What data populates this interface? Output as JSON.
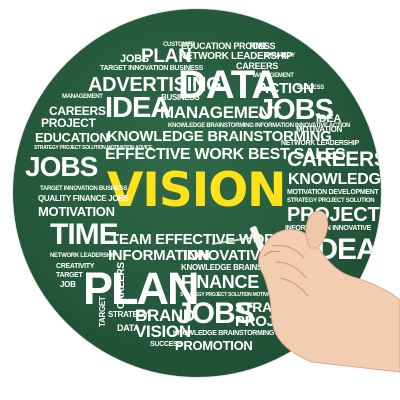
{
  "words": {
    "customer": "CUSTOMER",
    "education_process": "EDUCATION PROCESS",
    "time_top": "TIME",
    "jobs_small": "JOBS",
    "plan_top": "PLAN",
    "network_leadership_top": "NETWORK LEADERSHIP",
    "strategy": "STRATEGY",
    "target_innovation_business": "TARGET INNOVATION BUSINESS",
    "careers_top": "CAREERS",
    "management_tag": "MANAGEMENT",
    "advertising": "ADVERTISING",
    "data": "DATA",
    "action": "ACTION",
    "success_tag": "SUCCESS",
    "management_small": "MANAGEMENT",
    "idea_big": "IDEA",
    "business": "BUSINESS",
    "management_mid": "MANAGEMENT",
    "jobs_big": "JOBS",
    "idea_right": "IDEA",
    "careers_left": "CAREERS",
    "project_left": "PROJECT",
    "knowledge_line": "KNOWLEDGE BRAINSTORMING INFORMATION INNOVATIVE ACTION",
    "motivation_right": "MOTIVATION",
    "education": "EDUCATION",
    "knowledge_brainstorming": "KNOWLEDGE BRAINSTORMING",
    "network_leadership_right": "NETWORK LEADERSHIP",
    "strategy_project_line": "STRATEGY PROJECT SOLUTION MOTIVATION ADVICE",
    "effective_line": "EFFECTIVE WORK BEST SALES",
    "careers_right": "CAREERS",
    "jobs_left": "JOBS",
    "vision": "VISION",
    "knowledge_right": "KNOWLEDGE",
    "target_left": "TARGET INNOVATION BUSINESS",
    "motivation_development": "MOTIVATION DEVELOPMENT",
    "quality_finance": "QUALITY FINANCE JOBS",
    "strategy_right": "STRATEGY PROJECT SOLUTION",
    "motivation_left": "MOTIVATION",
    "project_right": "PROJECT",
    "time_big": "TIME",
    "information_right": "INFORMATION INNOVATIVE",
    "team_line": "TEAM EFFECTIVE WORK",
    "idea_lower": "IDEA",
    "information_mid": "INFORMATION",
    "innovative": "INNOVATIVE",
    "network_leadership_left": "NETWORK LEADERSHIP",
    "knowledge_brainst": "KNOWLEDGE BRAINST",
    "creativity": "CREATIVITY",
    "plan_big": "PLAN",
    "finance": "FINANCE",
    "target_small": "TARGET",
    "careers_vertical": "CAREERS",
    "job": "JOB",
    "strategy_project_low": "STRATEGY PROJECT SOLUTION MOTIVATION ADVICE",
    "strategy_lower": "STRATEGY",
    "brand": "BRAND",
    "jobs_lower": "JOBS",
    "stra": "STRA",
    "proj": "PROJ",
    "data_small": "DATA",
    "vision_small": "VISION",
    "knowledge_lower": "KNOWLEDGE BRAINSTORMING INFORMATION",
    "success_small": "SUCCESS",
    "promotion": "PROMOTION",
    "target_vertical": "TARGET"
  },
  "colors": {
    "disc_green": "#24573b",
    "word_white": "#ffffff",
    "vision_yellow": "#ffe21a",
    "skin": "#f2cdb2"
  }
}
